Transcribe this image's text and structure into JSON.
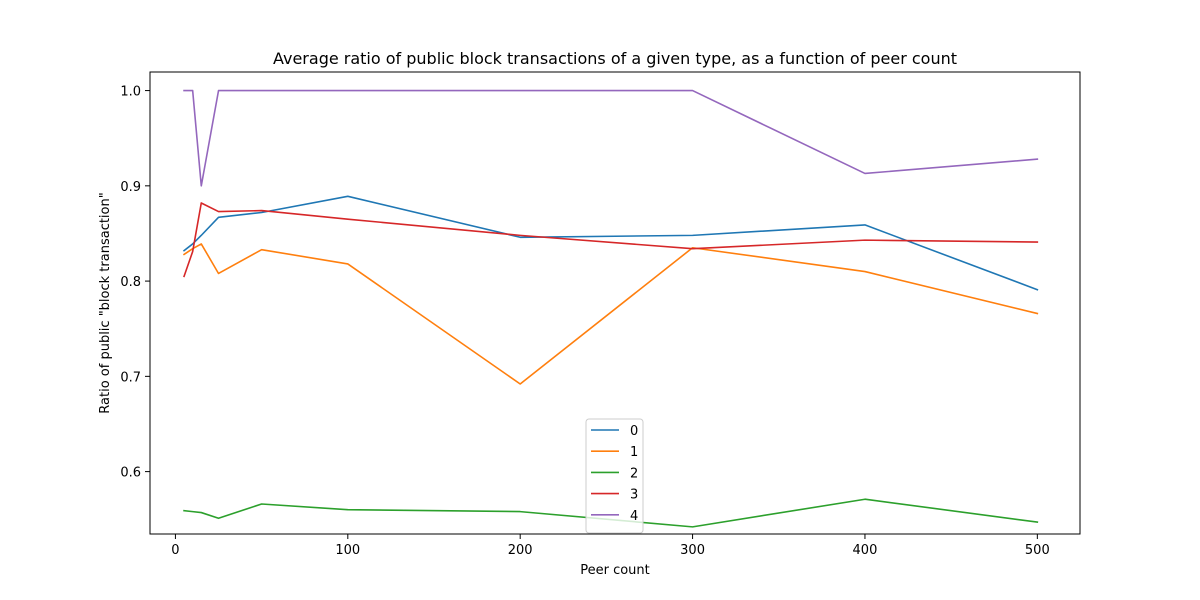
{
  "chart_data": {
    "type": "line",
    "title": "Average ratio of public block transactions of a given type, as a function of peer count",
    "xlabel": "Peer count",
    "ylabel": "Ratio of public \"block transaction\"",
    "xlim": [
      -14.75,
      524.75
    ],
    "ylim": [
      0.5345,
      1.0195
    ],
    "xticks": [
      0,
      100,
      200,
      300,
      400,
      500
    ],
    "xtick_labels": [
      "0",
      "100",
      "200",
      "300",
      "400",
      "500"
    ],
    "yticks": [
      0.6,
      0.7,
      0.8,
      0.9,
      1.0
    ],
    "ytick_labels": [
      "0.6",
      "0.7",
      "0.8",
      "0.9",
      "1.0"
    ],
    "grid": false,
    "legend_position": "lower-center",
    "x": [
      5,
      10,
      15,
      25,
      50,
      100,
      200,
      300,
      400,
      500
    ],
    "series": [
      {
        "name": "0",
        "color": "#1f77b4",
        "values": [
          0.832,
          0.839,
          0.848,
          0.867,
          0.872,
          0.889,
          0.846,
          0.848,
          0.859,
          0.791
        ]
      },
      {
        "name": "1",
        "color": "#ff7f0e",
        "values": [
          0.828,
          0.834,
          0.839,
          0.808,
          0.833,
          0.818,
          0.692,
          0.835,
          0.81,
          0.766
        ]
      },
      {
        "name": "2",
        "color": "#2ca02c",
        "values": [
          0.559,
          0.558,
          0.557,
          0.551,
          0.566,
          0.56,
          0.558,
          0.542,
          0.571,
          0.547
        ]
      },
      {
        "name": "3",
        "color": "#d62728",
        "values": [
          0.805,
          0.831,
          0.882,
          0.873,
          0.874,
          0.865,
          0.848,
          0.834,
          0.843,
          0.841
        ]
      },
      {
        "name": "4",
        "color": "#9467bd",
        "values": [
          1.0,
          1.0,
          0.9,
          1.0,
          1.0,
          1.0,
          1.0,
          1.0,
          0.913,
          0.928
        ]
      }
    ]
  }
}
